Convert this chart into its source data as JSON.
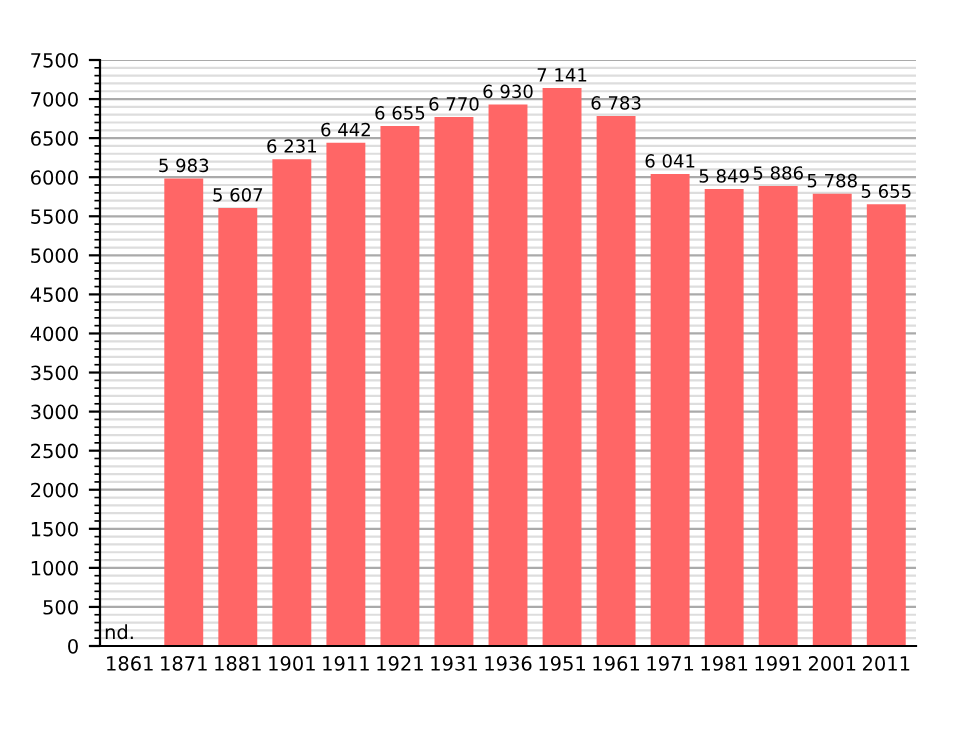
{
  "chart_data": {
    "type": "bar",
    "categories": [
      "1861",
      "1871",
      "1881",
      "1901",
      "1911",
      "1921",
      "1931",
      "1936",
      "1951",
      "1961",
      "1971",
      "1981",
      "1991",
      "2001",
      "2011"
    ],
    "values": [
      null,
      5983,
      5607,
      6231,
      6442,
      6655,
      6770,
      6930,
      7141,
      6783,
      6041,
      5849,
      5886,
      5788,
      5655
    ],
    "value_labels": [
      null,
      "5 983",
      "5 607",
      "6 231",
      "6 442",
      "6 655",
      "6 770",
      "6 930",
      "7 141",
      "6 783",
      "6 041",
      "5 849",
      "5 886",
      "5 788",
      "5 655"
    ],
    "color": "#ff6666",
    "annotations": [
      "nd."
    ],
    "ylim": [
      0,
      7500
    ],
    "yticks": [
      0,
      {
        "value": 100,
        "label": null
      },
      {
        "value": 200,
        "label": null
      },
      {
        "value": 300,
        "label": null
      },
      {
        "value": 400,
        "label": null
      },
      500,
      {
        "value": 600,
        "label": null
      },
      {
        "value": 700,
        "label": null
      },
      {
        "value": 800,
        "label": null
      },
      {
        "value": 900,
        "label": null
      },
      1000,
      {
        "value": 1100,
        "label": null
      },
      {
        "value": 1200,
        "label": null
      },
      {
        "value": 1300,
        "label": null
      },
      {
        "value": 1400,
        "label": null
      },
      1500,
      {
        "value": 1600,
        "label": null
      },
      {
        "value": 1700,
        "label": null
      },
      {
        "value": 1800,
        "label": null
      },
      {
        "value": 1900,
        "label": null
      },
      2000,
      {
        "value": 2100,
        "label": null
      },
      {
        "value": 2200,
        "label": null
      },
      {
        "value": 2300,
        "label": null
      },
      {
        "value": 2400,
        "label": null
      },
      2500,
      {
        "value": 2600,
        "label": null
      },
      {
        "value": 2700,
        "label": null
      },
      {
        "value": 2800,
        "label": null
      },
      {
        "value": 2900,
        "label": null
      },
      3000,
      {
        "value": 3100,
        "label": null
      },
      {
        "value": 3200,
        "label": null
      },
      {
        "value": 3300,
        "label": null
      },
      {
        "value": 3400,
        "label": null
      },
      3500,
      {
        "value": 3600,
        "label": null
      },
      {
        "value": 3700,
        "label": null
      },
      {
        "value": 3800,
        "label": null
      },
      {
        "value": 3900,
        "label": null
      },
      4000,
      {
        "value": 4100,
        "label": null
      },
      {
        "value": 4200,
        "label": null
      },
      {
        "value": 4300,
        "label": null
      },
      {
        "value": 4400,
        "label": null
      },
      4500,
      {
        "value": 4600,
        "label": null
      },
      {
        "value": 4700,
        "label": null
      },
      {
        "value": 4800,
        "label": null
      },
      {
        "value": 4900,
        "label": null
      },
      5000,
      {
        "value": 5100,
        "label": null
      },
      {
        "value": 5200,
        "label": null
      },
      {
        "value": 5300,
        "label": null
      },
      {
        "value": 5400,
        "label": null
      },
      5500,
      {
        "value": 5600,
        "label": null
      },
      {
        "value": 5700,
        "label": null
      },
      {
        "value": 5800,
        "label": null
      },
      {
        "value": 5900,
        "label": null
      },
      6000,
      {
        "value": 6100,
        "label": null
      },
      {
        "value": 6200,
        "label": null
      },
      {
        "value": 6300,
        "label": null
      },
      {
        "value": 6400,
        "label": null
      },
      6500,
      {
        "value": 6600,
        "label": null
      },
      {
        "value": 6700,
        "label": null
      },
      {
        "value": 6800,
        "label": null
      },
      {
        "value": 6900,
        "label": null
      },
      7000,
      {
        "value": 7100,
        "label": null
      },
      {
        "value": 7200,
        "label": null
      },
      {
        "value": 7300,
        "label": null
      },
      {
        "value": 7400,
        "label": null
      },
      7500
    ],
    "grid": "y",
    "legend": false
  }
}
